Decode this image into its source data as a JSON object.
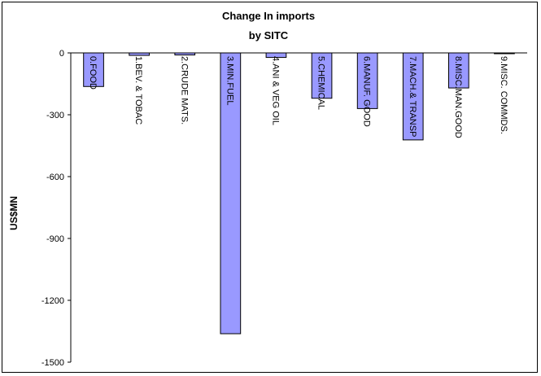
{
  "chart_data": {
    "type": "bar",
    "title": "Change In imports",
    "subtitle": "by SITC",
    "xlabel": "",
    "ylabel": "US$MN",
    "ylim": [
      -1500,
      0
    ],
    "yticks": [
      0,
      -300,
      -600,
      -900,
      -1200,
      -1500
    ],
    "ytick_labels": [
      "0",
      "-300",
      "-600",
      "-900",
      "-1200",
      "-1500"
    ],
    "grid": false,
    "legend": "none",
    "bar_color": "#9999ff",
    "categories": [
      "0.FOOD",
      "1.BEV. & TOBAC",
      "2.CRUDE MATS.",
      "3.MIN.FUEL",
      "4.ANI & VEG OIL",
      "5.CHEMICAL",
      "6.MANUF. GOOD",
      "7.MACH.& TRANSP",
      "8.MISC.MAN.GOOD",
      "9.MISC. COMMDS."
    ],
    "values": [
      -163,
      -12,
      -10,
      -1362,
      -22,
      -220,
      -270,
      -422,
      -170,
      -3
    ]
  }
}
